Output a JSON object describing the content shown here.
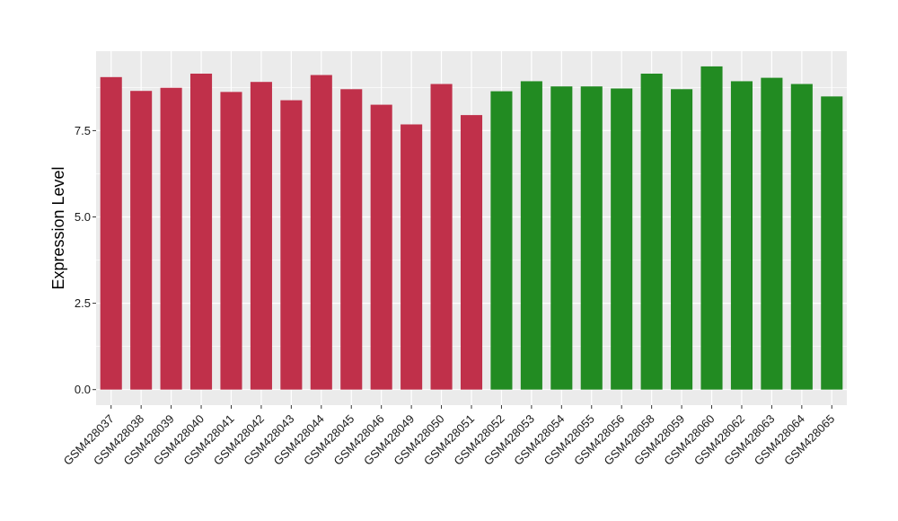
{
  "chart_data": {
    "type": "bar",
    "ylabel": "Expression Level",
    "xlabel": "",
    "ylim": [
      -0.45,
      9.8
    ],
    "yticks": [
      0.0,
      2.5,
      5.0,
      7.5
    ],
    "ytick_labels": [
      "0.0",
      "2.5",
      "5.0",
      "7.5"
    ],
    "grid": true,
    "background_color": "#EBEBEB",
    "grid_color": "#FFFFFF",
    "categories": [
      "GSM428037",
      "GSM428038",
      "GSM428039",
      "GSM428040",
      "GSM428041",
      "GSM428042",
      "GSM428043",
      "GSM428044",
      "GSM428045",
      "GSM428046",
      "GSM428049",
      "GSM428050",
      "GSM428051",
      "GSM428052",
      "GSM428053",
      "GSM428054",
      "GSM428055",
      "GSM428056",
      "GSM428058",
      "GSM428059",
      "GSM428060",
      "GSM428062",
      "GSM428063",
      "GSM428064",
      "GSM428065"
    ],
    "values": [
      9.05,
      8.65,
      8.74,
      9.15,
      8.62,
      8.91,
      8.38,
      9.11,
      8.7,
      8.25,
      7.68,
      8.85,
      7.95,
      8.64,
      8.93,
      8.78,
      8.78,
      8.72,
      9.15,
      8.7,
      9.36,
      8.93,
      9.03,
      8.85,
      8.49
    ],
    "colors": [
      "#C0304A",
      "#C0304A",
      "#C0304A",
      "#C0304A",
      "#C0304A",
      "#C0304A",
      "#C0304A",
      "#C0304A",
      "#C0304A",
      "#C0304A",
      "#C0304A",
      "#C0304A",
      "#C0304A",
      "#228B22",
      "#228B22",
      "#228B22",
      "#228B22",
      "#228B22",
      "#228B22",
      "#228B22",
      "#228B22",
      "#228B22",
      "#228B22",
      "#228B22",
      "#228B22"
    ]
  }
}
